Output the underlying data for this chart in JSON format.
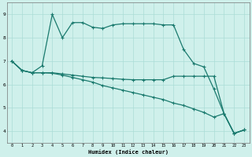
{
  "xlabel": "Humidex (Indice chaleur)",
  "bg_color": "#cff0eb",
  "line_color": "#1a7a6e",
  "grid_color": "#aaddd6",
  "xlim": [
    -0.5,
    23.5
  ],
  "ylim": [
    3.5,
    9.5
  ],
  "xticks": [
    0,
    1,
    2,
    3,
    4,
    5,
    6,
    7,
    8,
    9,
    10,
    11,
    12,
    13,
    14,
    15,
    16,
    17,
    18,
    19,
    20,
    21,
    22,
    23
  ],
  "yticks": [
    4,
    5,
    6,
    7,
    8,
    9
  ],
  "line1_x": [
    0,
    1,
    2,
    3,
    4,
    5,
    6,
    7,
    8,
    9,
    10,
    11,
    12,
    13,
    14,
    15,
    16,
    17,
    18,
    19,
    20,
    21,
    22,
    23
  ],
  "line1_y": [
    7.0,
    6.6,
    6.5,
    6.8,
    9.0,
    8.0,
    8.65,
    8.65,
    8.45,
    8.4,
    8.55,
    8.6,
    8.6,
    8.6,
    8.6,
    8.55,
    8.55,
    7.5,
    6.9,
    6.75,
    5.8,
    4.75,
    3.9,
    4.05
  ],
  "line2_x": [
    0,
    1,
    2,
    3,
    4,
    5,
    6,
    7,
    8,
    9,
    10,
    11,
    12,
    13,
    14,
    15,
    16,
    17,
    18,
    19,
    20,
    21,
    22,
    23
  ],
  "line2_y": [
    7.0,
    6.6,
    6.5,
    6.5,
    6.5,
    6.45,
    6.4,
    6.35,
    6.3,
    6.28,
    6.25,
    6.22,
    6.2,
    6.2,
    6.2,
    6.2,
    6.35,
    6.35,
    6.35,
    6.35,
    6.35,
    4.75,
    3.9,
    4.05
  ],
  "line3_x": [
    0,
    1,
    2,
    3,
    4,
    5,
    6,
    7,
    8,
    9,
    10,
    11,
    12,
    13,
    14,
    15,
    16,
    17,
    18,
    19,
    20,
    21,
    22,
    23
  ],
  "line3_y": [
    7.0,
    6.6,
    6.5,
    6.5,
    6.48,
    6.4,
    6.3,
    6.2,
    6.1,
    5.95,
    5.85,
    5.75,
    5.65,
    5.55,
    5.45,
    5.35,
    5.2,
    5.1,
    4.95,
    4.8,
    4.6,
    4.75,
    3.9,
    4.05
  ]
}
